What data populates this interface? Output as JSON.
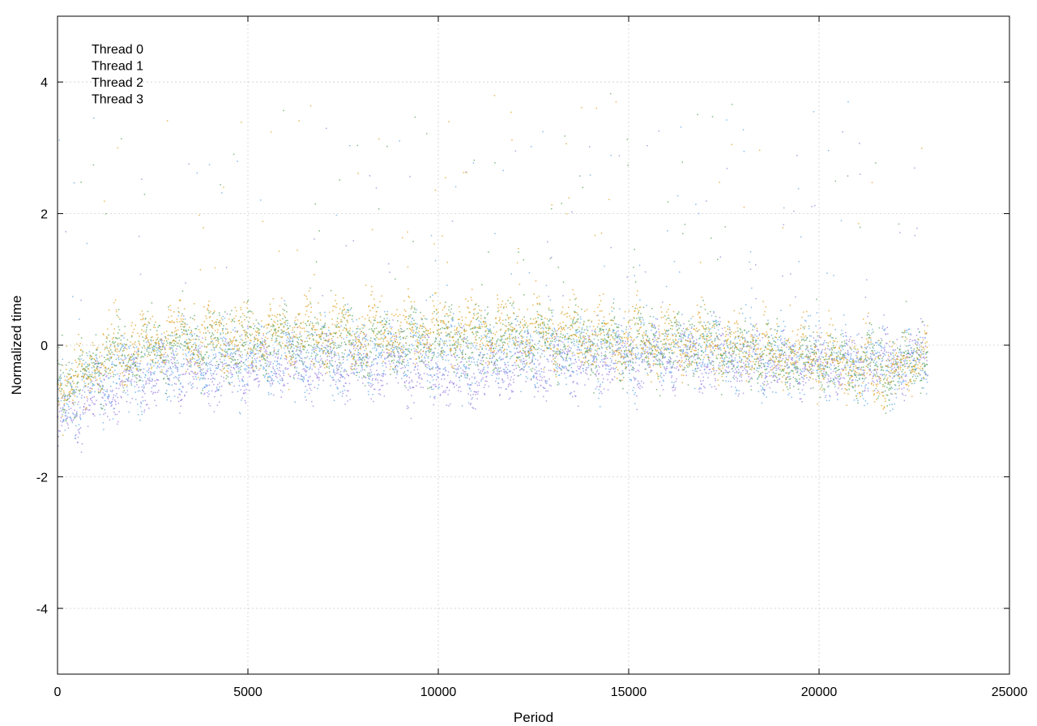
{
  "chart_data": {
    "type": "scatter",
    "title": "",
    "xlabel": "Period",
    "ylabel": "Normalized time",
    "xlim": [
      0,
      25000
    ],
    "ylim": [
      -5,
      5
    ],
    "x_ticks": [
      0,
      5000,
      10000,
      15000,
      20000,
      25000
    ],
    "y_ticks": [
      -4,
      -2,
      0,
      2,
      4
    ],
    "x_tick_labels": [
      "0",
      "5000",
      "10000",
      "15000",
      "20000",
      "25000"
    ],
    "y_tick_labels": [
      "-4",
      "-2",
      "0",
      "2",
      "4"
    ],
    "grid": true,
    "legend_position": "top-left",
    "x_max_observed": 22850,
    "series": [
      {
        "name": "Thread 0",
        "color": "#9b7fe0",
        "trend": [
          [
            0,
            -1.25
          ],
          [
            500,
            -1.0
          ],
          [
            1000,
            -0.75
          ],
          [
            2000,
            -0.55
          ],
          [
            3000,
            -0.45
          ],
          [
            5000,
            -0.35
          ],
          [
            7000,
            -0.3
          ],
          [
            9000,
            -0.35
          ],
          [
            10500,
            -0.45
          ],
          [
            11500,
            -0.4
          ],
          [
            13000,
            -0.3
          ],
          [
            15000,
            -0.2
          ],
          [
            17000,
            -0.2
          ],
          [
            19000,
            -0.3
          ],
          [
            21000,
            -0.3
          ],
          [
            22000,
            -0.25
          ],
          [
            22850,
            -0.2
          ]
        ],
        "spread": 0.35
      },
      {
        "name": "Thread 1",
        "color": "#5fa8e8",
        "trend": [
          [
            0,
            -0.9
          ],
          [
            500,
            -0.75
          ],
          [
            1000,
            -0.5
          ],
          [
            2000,
            -0.35
          ],
          [
            3000,
            -0.25
          ],
          [
            5000,
            -0.2
          ],
          [
            7000,
            -0.15
          ],
          [
            9000,
            -0.1
          ],
          [
            10500,
            -0.15
          ],
          [
            12000,
            -0.1
          ],
          [
            14000,
            -0.05
          ],
          [
            15000,
            -0.1
          ],
          [
            17000,
            -0.05
          ],
          [
            19000,
            -0.2
          ],
          [
            21000,
            -0.25
          ],
          [
            22000,
            -0.3
          ],
          [
            22850,
            -0.15
          ]
        ],
        "spread": 0.45
      },
      {
        "name": "Thread 2",
        "color": "#5aa35a",
        "trend": [
          [
            0,
            -0.6
          ],
          [
            500,
            -0.55
          ],
          [
            1000,
            -0.3
          ],
          [
            2000,
            -0.1
          ],
          [
            3000,
            0.0
          ],
          [
            5000,
            0.05
          ],
          [
            7000,
            0.05
          ],
          [
            9000,
            0.05
          ],
          [
            10500,
            0.1
          ],
          [
            12000,
            0.1
          ],
          [
            14000,
            0.05
          ],
          [
            15000,
            0.0
          ],
          [
            17000,
            0.0
          ],
          [
            19000,
            -0.2
          ],
          [
            21000,
            -0.3
          ],
          [
            22000,
            -0.35
          ],
          [
            22850,
            -0.1
          ]
        ],
        "spread": 0.4
      },
      {
        "name": "Thread 3",
        "color": "#e0a020",
        "trend": [
          [
            0,
            -0.5
          ],
          [
            500,
            -0.6
          ],
          [
            1000,
            -0.2
          ],
          [
            2000,
            0.0
          ],
          [
            3000,
            0.1
          ],
          [
            5000,
            0.15
          ],
          [
            7000,
            0.2
          ],
          [
            9000,
            0.2
          ],
          [
            10500,
            0.25
          ],
          [
            12000,
            0.2
          ],
          [
            14000,
            0.15
          ],
          [
            15000,
            0.1
          ],
          [
            17000,
            0.05
          ],
          [
            19000,
            -0.1
          ],
          [
            21000,
            -0.3
          ],
          [
            22000,
            -0.45
          ],
          [
            22850,
            -0.1
          ]
        ],
        "spread": 0.4
      }
    ]
  }
}
